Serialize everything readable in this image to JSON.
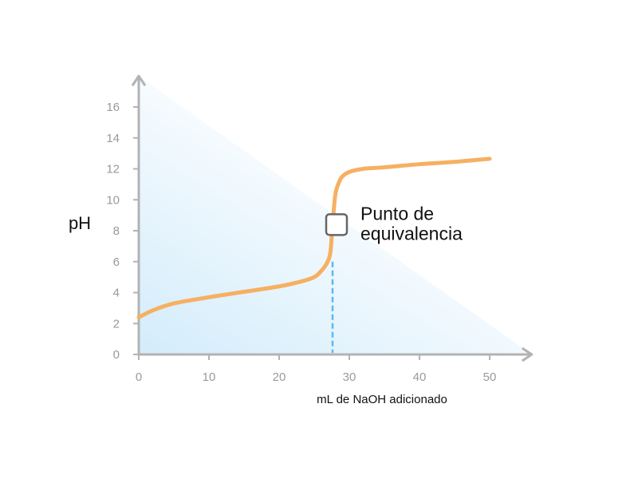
{
  "chart_data": {
    "type": "line",
    "title": "",
    "xlabel": "mL de NaOH adicionado",
    "ylabel": "pH",
    "xlim": [
      0,
      56
    ],
    "ylim": [
      0,
      18
    ],
    "x_ticks": [
      0,
      10,
      20,
      30,
      40,
      50
    ],
    "y_ticks": [
      0,
      2,
      4,
      6,
      8,
      10,
      12,
      14,
      16
    ],
    "grid": false,
    "legend": "none",
    "series": [
      {
        "x": [
          0,
          2,
          5,
          10,
          15,
          20,
          23,
          25,
          26,
          26.8,
          27.3,
          27.6,
          28.0,
          28.5,
          29.0,
          30,
          32,
          35,
          40,
          45,
          50
        ],
        "y": [
          2.4,
          2.85,
          3.3,
          3.7,
          4.05,
          4.4,
          4.7,
          5.0,
          5.4,
          5.9,
          6.6,
          8.3,
          10.3,
          11.1,
          11.5,
          11.8,
          12.0,
          12.1,
          12.3,
          12.45,
          12.65
        ]
      }
    ],
    "annotations": [
      {
        "text_line1": "Punto de",
        "text_line2": "equivalencia",
        "x": 27.5,
        "y": 8.5,
        "dropline_to_x_axis": true
      }
    ],
    "colors": {
      "curve": "#f6b062",
      "axis": "#b3b3b3",
      "dropline": "#5ab8f0",
      "marker_stroke": "#666666",
      "gradient_start": "#d3ecfb",
      "gradient_end": "#ffffff"
    }
  }
}
